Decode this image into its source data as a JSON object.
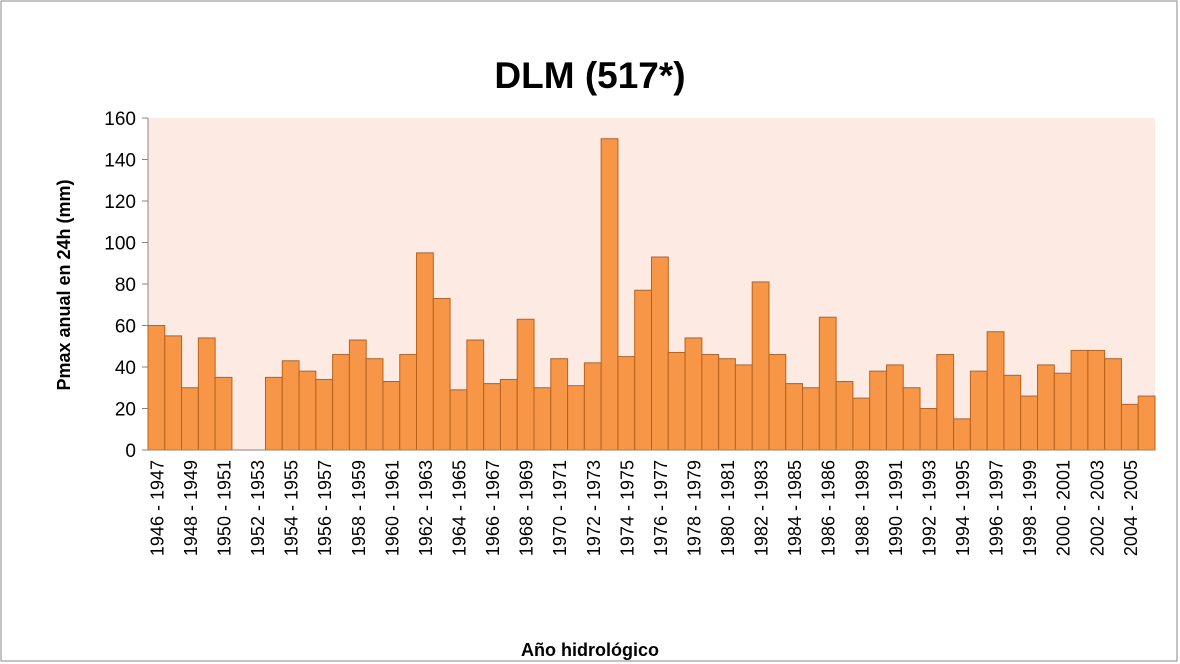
{
  "chart_data": {
    "type": "bar",
    "title": "DLM (517*)",
    "x_label": "Año hidrológico",
    "y_label": "Pmax anual en 24h (mm)",
    "categories": [
      "1946 - 1947",
      null,
      "1948 - 1949",
      null,
      "1950 - 1951",
      null,
      "1952 - 1953",
      null,
      "1954 - 1955",
      null,
      "1956 - 1957",
      null,
      "1958 - 1959",
      null,
      "1960 - 1961",
      null,
      "1962 - 1963",
      null,
      "1964 - 1965",
      null,
      "1966 - 1967",
      null,
      "1968 - 1969",
      null,
      "1970 - 1971",
      null,
      "1972 - 1973",
      null,
      "1974 - 1975",
      null,
      "1976 - 1977",
      null,
      "1978 - 1979",
      null,
      "1980 - 1981",
      null,
      "1982 - 1983",
      null,
      "1984 - 1985",
      null,
      "1986 - 1986",
      null,
      "1988 - 1989",
      null,
      "1990 - 1991",
      null,
      "1992 - 1993",
      null,
      "1994 - 1995",
      null,
      "1996 - 1997",
      null,
      "1998 - 1999",
      null,
      "2000 - 2001",
      null,
      "2002 - 2003",
      null,
      "2004 - 2005",
      null
    ],
    "values": [
      60,
      55,
      30,
      54,
      35,
      null,
      null,
      35,
      43,
      38,
      34,
      46,
      53,
      44,
      33,
      46,
      95,
      73,
      29,
      53,
      32,
      34,
      63,
      30,
      44,
      31,
      42,
      150,
      45,
      77,
      93,
      47,
      54,
      46,
      44,
      41,
      81,
      46,
      32,
      30,
      64,
      33,
      25,
      38,
      41,
      30,
      20,
      46,
      15,
      38,
      57,
      36,
      26,
      41,
      37,
      48,
      48,
      44,
      22,
      26
    ],
    "color": "#f79646",
    "edge_color": "#b8621d",
    "plot_background": "#fdeae2",
    "ylim": [
      0,
      160
    ],
    "yticks": [
      0,
      20,
      40,
      60,
      80,
      100,
      120,
      140,
      160
    ]
  }
}
